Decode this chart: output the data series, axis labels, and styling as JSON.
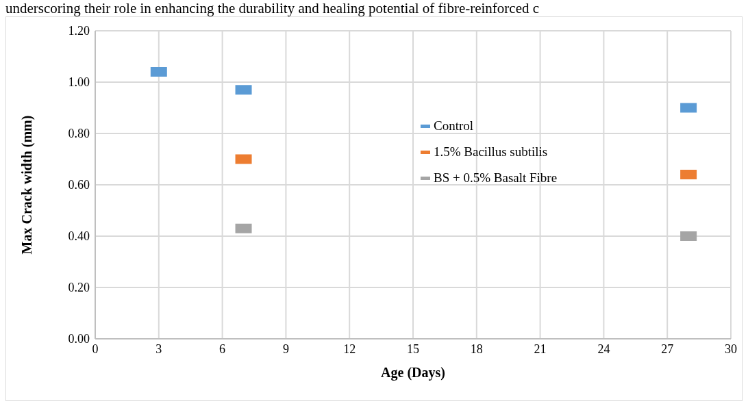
{
  "chart_data": {
    "type": "scatter",
    "xlabel": "Age (Days)",
    "ylabel": "Max Crack width (mm)",
    "annotations": [
      "underscoring their role in enhancing the durability and healing potential of fibre-reinforced c"
    ],
    "series": [
      {
        "name": "Control",
        "color": "#5b9bd5",
        "x": [
          3,
          7,
          28
        ],
        "values": [
          1.04,
          0.97,
          0.9
        ]
      },
      {
        "name": "1.5% Bacillus subtilis",
        "color": "#ed7d31",
        "x": [
          7,
          28
        ],
        "values": [
          0.7,
          0.64
        ]
      },
      {
        "name": "BS + 0.5% Basalt Fibre",
        "color": "#a5a5a5",
        "x": [
          7,
          28
        ],
        "values": [
          0.43,
          0.4
        ]
      }
    ],
    "xlim": [
      0,
      30
    ],
    "xticks": [
      0,
      3,
      6,
      9,
      12,
      15,
      18,
      21,
      24,
      27,
      30
    ],
    "ylim": [
      0,
      1.2
    ],
    "yticks": [
      {
        "value": 0,
        "label": "0.00"
      },
      {
        "value": 0.2,
        "label": "0.20"
      },
      {
        "value": 0.4,
        "label": "0.40"
      },
      {
        "value": 0.6,
        "label": "0.60"
      },
      {
        "value": 0.8,
        "label": "0.80"
      },
      {
        "value": 1,
        "label": "1.00"
      },
      {
        "value": 1.2,
        "label": "1.20"
      }
    ],
    "grid": true,
    "legend": "right"
  }
}
